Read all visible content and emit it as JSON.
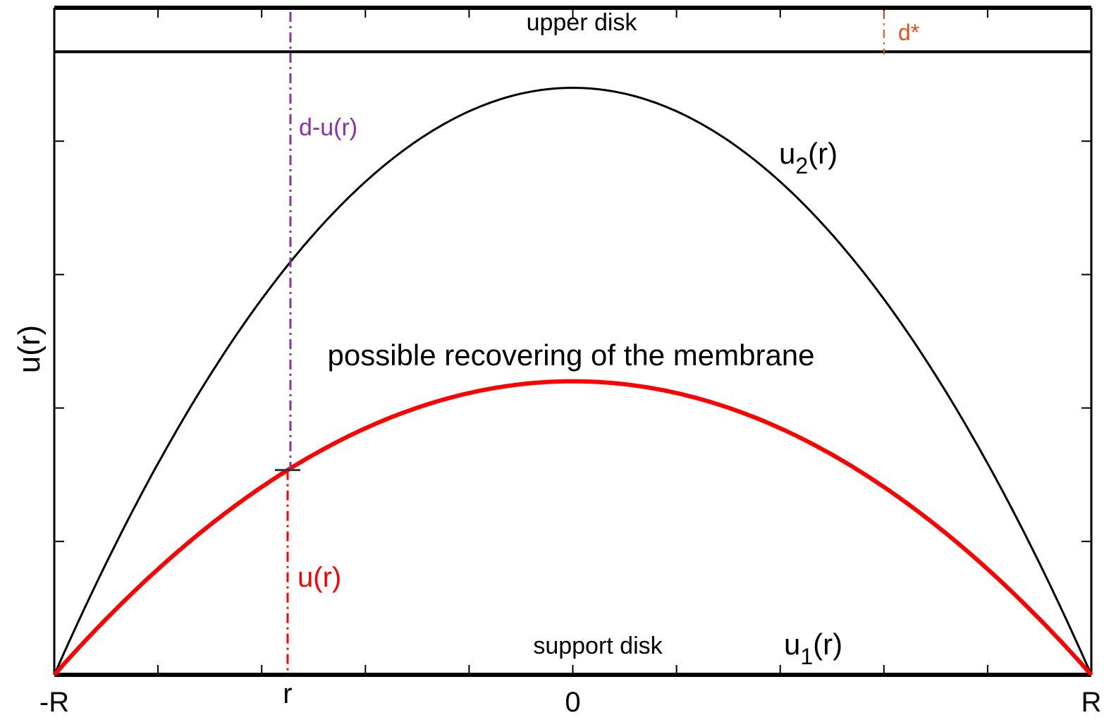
{
  "chart_data": {
    "type": "line",
    "ylabel": "u(r)",
    "xlim": [
      -1,
      1
    ],
    "ylim": [
      0,
      5
    ],
    "grid": false,
    "x_tick_labels": [
      {
        "value": -1,
        "label": "-R"
      },
      {
        "value": -0.55,
        "label": "r"
      },
      {
        "value": 0,
        "label": "0"
      },
      {
        "value": 1,
        "label": "R"
      }
    ],
    "series": [
      {
        "name": "u2(r)",
        "label_main": "u",
        "label_sub": "2",
        "label_tail": "(r)",
        "color": "#000000",
        "shape": "parabola",
        "peak": 4.4
      },
      {
        "name": "u(r)",
        "color": "#ff0000",
        "shape": "parabola",
        "peak": 2.2
      },
      {
        "name": "u1(r)",
        "label_main": "u",
        "label_sub": "1",
        "label_tail": "(r)",
        "color": "#000000",
        "shape": "flat",
        "value": 0
      }
    ],
    "upper_disk": {
      "label": "upper disk",
      "bottom": 4.67,
      "top": 5.0
    },
    "support_disk": {
      "label": "support disk"
    },
    "r_marker": {
      "r": -0.55,
      "upper_label": "d-u(r)",
      "upper_color": "#8b2fa6",
      "lower_label": "u(r)",
      "lower_color": "#ff0000"
    },
    "d_star": {
      "r": 0.6,
      "label": "d*",
      "color": "#e2531c"
    },
    "annotation": "possible recovering of the membrane"
  }
}
